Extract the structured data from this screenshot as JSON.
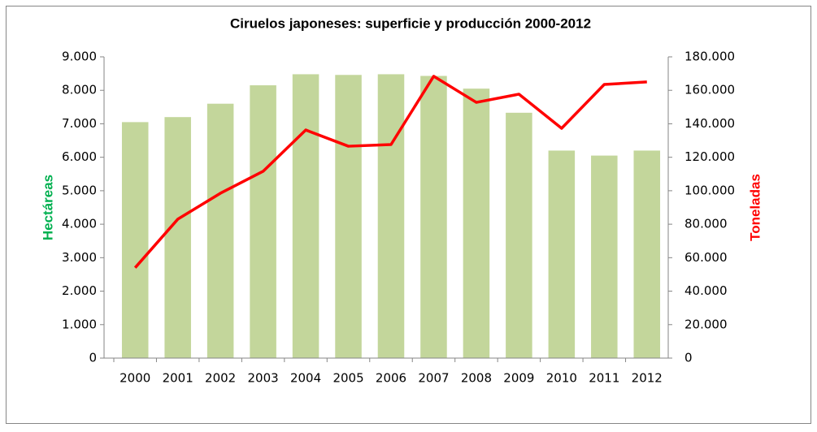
{
  "chart_data": {
    "type": "bar-line",
    "title": "Ciruelos japoneses: superficie y producción 2000-2012",
    "ylabel": "Hectáreas",
    "y2label": "Toneladas",
    "categories": [
      "2000",
      "2001",
      "2002",
      "2003",
      "2004",
      "2005",
      "2006",
      "2007",
      "2008",
      "2009",
      "2010",
      "2011",
      "2012"
    ],
    "series": [
      {
        "name": "Hectáreas",
        "type": "bar",
        "color": "#c3d69b",
        "axis": "y",
        "values": [
          7050,
          7200,
          7600,
          8150,
          8480,
          8460,
          8480,
          8430,
          8050,
          7330,
          6200,
          6050,
          6200
        ]
      },
      {
        "name": "Toneladas",
        "type": "line",
        "color": "#ff0000",
        "axis": "y2",
        "values": [
          54000,
          83000,
          98500,
          111600,
          136300,
          126600,
          127600,
          168400,
          152800,
          157700,
          137300,
          163500,
          165000
        ]
      }
    ],
    "ylim": [
      0,
      9000
    ],
    "yticks": [
      0,
      {
        "value": 1000,
        "label": "1.000"
      },
      {
        "value": 2000,
        "label": "2.000"
      },
      {
        "value": 3000,
        "label": "3.000"
      },
      {
        "value": 4000,
        "label": "4.000"
      },
      {
        "value": 5000,
        "label": "5.000"
      },
      {
        "value": 6000,
        "label": "6.000"
      },
      {
        "value": 7000,
        "label": "7.000"
      },
      {
        "value": 8000,
        "label": "8.000"
      },
      {
        "value": 9000,
        "label": "9.000"
      }
    ],
    "y2lim": [
      0,
      180000
    ],
    "y2ticks": [
      0,
      {
        "value": 20000,
        "label": "20.000"
      },
      {
        "value": 40000,
        "label": "40.000"
      },
      {
        "value": 60000,
        "label": "60.000"
      },
      {
        "value": 80000,
        "label": "80.000"
      },
      {
        "value": 100000,
        "label": "100.000"
      },
      {
        "value": 120000,
        "label": "120.000"
      },
      {
        "value": 140000,
        "label": "140.000"
      },
      {
        "value": 160000,
        "label": "160.000"
      },
      {
        "value": 180000,
        "label": "180.000"
      }
    ],
    "ylabel_color": "#00b050",
    "y2label_color": "#ff0000"
  }
}
